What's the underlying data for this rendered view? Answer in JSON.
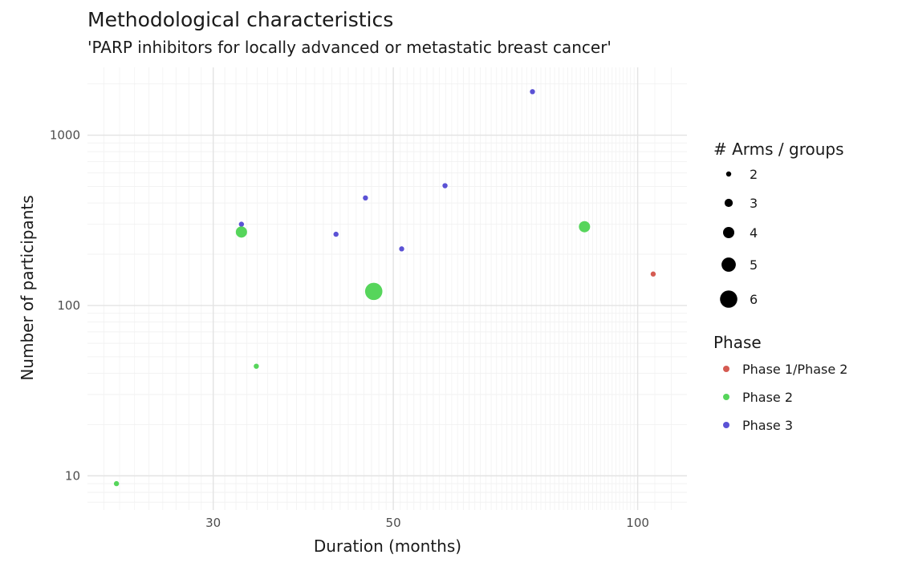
{
  "chart_data": {
    "type": "scatter",
    "title": "Methodological characteristics",
    "subtitle": "'PARP inhibitors for locally advanced or metastatic breast cancer'",
    "xlabel": "Duration (months)",
    "ylabel": "Number of participants",
    "x_scale": "log",
    "y_scale": "log",
    "xlim": [
      21,
      115
    ],
    "ylim": [
      6.3,
      2500
    ],
    "x_ticks": [
      {
        "value": 30,
        "label": "30"
      },
      {
        "value": 50,
        "label": "50"
      },
      {
        "value": 100,
        "label": "100"
      }
    ],
    "y_ticks": [
      {
        "value": 10,
        "label": "10"
      },
      {
        "value": 100,
        "label": "100"
      },
      {
        "value": 1000,
        "label": "1000"
      }
    ],
    "grid": true,
    "legend": {
      "position": "right",
      "size_title": "# Arms / groups",
      "size_entries": [
        {
          "value": 2,
          "label": "2"
        },
        {
          "value": 3,
          "label": "3"
        },
        {
          "value": 4,
          "label": "4"
        },
        {
          "value": 5,
          "label": "5"
        },
        {
          "value": 6,
          "label": "6"
        }
      ],
      "color_title": "Phase",
      "color_entries": [
        {
          "name": "Phase 1/Phase 2",
          "label": "Phase 1/Phase 2",
          "color": "#d55b52"
        },
        {
          "name": "Phase 2",
          "label": "Phase 2",
          "color": "#56d55b"
        },
        {
          "name": "Phase 3",
          "label": "Phase 3",
          "color": "#5b52d5"
        }
      ]
    },
    "points": [
      {
        "x": 22.8,
        "y": 9,
        "arms": 2,
        "phase": "Phase 2"
      },
      {
        "x": 32.5,
        "y": 300,
        "arms": 2,
        "phase": "Phase 3"
      },
      {
        "x": 32.5,
        "y": 270,
        "arms": 4,
        "phase": "Phase 2"
      },
      {
        "x": 33.9,
        "y": 44,
        "arms": 2,
        "phase": "Phase 2"
      },
      {
        "x": 42.5,
        "y": 262,
        "arms": 2,
        "phase": "Phase 3"
      },
      {
        "x": 46.2,
        "y": 428,
        "arms": 2,
        "phase": "Phase 3"
      },
      {
        "x": 47.3,
        "y": 121,
        "arms": 6,
        "phase": "Phase 2"
      },
      {
        "x": 51.2,
        "y": 215,
        "arms": 2,
        "phase": "Phase 3"
      },
      {
        "x": 57.9,
        "y": 505,
        "arms": 2,
        "phase": "Phase 3"
      },
      {
        "x": 74.2,
        "y": 1800,
        "arms": 2,
        "phase": "Phase 3"
      },
      {
        "x": 86.0,
        "y": 290,
        "arms": 4,
        "phase": "Phase 2"
      },
      {
        "x": 104.5,
        "y": 153,
        "arms": 2,
        "phase": "Phase 1/Phase 2"
      }
    ]
  }
}
